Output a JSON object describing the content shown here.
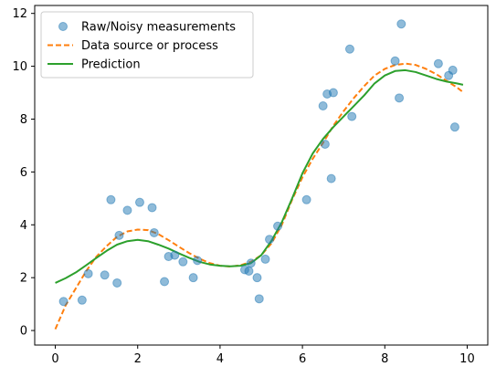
{
  "chart_data": {
    "type": "scatter",
    "title": "",
    "xlabel": "",
    "ylabel": "",
    "xlim": [
      -0.5,
      10.5
    ],
    "ylim": [
      -0.55,
      12.3
    ],
    "xticks": [
      0,
      2,
      4,
      6,
      8,
      10
    ],
    "yticks": [
      0,
      2,
      4,
      6,
      8,
      10,
      12
    ],
    "grid": false,
    "legend_position": "top-left",
    "legend": [
      "Raw/Noisy measurements",
      "Data source or process",
      "Prediction"
    ],
    "series": [
      {
        "name": "Raw/Noisy measurements",
        "kind": "scatter",
        "color": "#1f77b4",
        "points": [
          [
            0.2,
            1.1
          ],
          [
            0.65,
            1.15
          ],
          [
            0.8,
            2.15
          ],
          [
            1.2,
            2.1
          ],
          [
            1.35,
            4.95
          ],
          [
            1.5,
            1.8
          ],
          [
            1.55,
            3.6
          ],
          [
            1.75,
            4.55
          ],
          [
            2.05,
            4.85
          ],
          [
            2.35,
            4.65
          ],
          [
            2.4,
            3.7
          ],
          [
            2.65,
            1.85
          ],
          [
            2.75,
            2.8
          ],
          [
            2.9,
            2.85
          ],
          [
            3.1,
            2.6
          ],
          [
            3.35,
            2.0
          ],
          [
            3.45,
            2.65
          ],
          [
            4.6,
            2.3
          ],
          [
            4.7,
            2.25
          ],
          [
            4.75,
            2.55
          ],
          [
            4.9,
            2.0
          ],
          [
            4.95,
            1.2
          ],
          [
            5.1,
            2.7
          ],
          [
            5.2,
            3.45
          ],
          [
            5.4,
            3.95
          ],
          [
            6.1,
            4.95
          ],
          [
            6.5,
            8.5
          ],
          [
            6.55,
            7.05
          ],
          [
            6.6,
            8.95
          ],
          [
            6.7,
            5.75
          ],
          [
            6.75,
            9.0
          ],
          [
            7.15,
            10.65
          ],
          [
            7.2,
            8.1
          ],
          [
            8.25,
            10.2
          ],
          [
            8.35,
            8.8
          ],
          [
            8.4,
            11.6
          ],
          [
            9.3,
            10.1
          ],
          [
            9.55,
            9.65
          ],
          [
            9.65,
            9.85
          ],
          [
            9.7,
            7.7
          ]
        ]
      },
      {
        "name": "Data source or process",
        "kind": "line",
        "style": "dashed",
        "color": "#ff7f0e",
        "points": [
          [
            0.0,
            0.05
          ],
          [
            0.25,
            0.95
          ],
          [
            0.5,
            1.6
          ],
          [
            0.75,
            2.25
          ],
          [
            1.0,
            2.8
          ],
          [
            1.25,
            3.2
          ],
          [
            1.5,
            3.55
          ],
          [
            1.75,
            3.75
          ],
          [
            2.0,
            3.82
          ],
          [
            2.25,
            3.8
          ],
          [
            2.5,
            3.65
          ],
          [
            2.75,
            3.42
          ],
          [
            3.0,
            3.17
          ],
          [
            3.25,
            2.93
          ],
          [
            3.5,
            2.72
          ],
          [
            3.75,
            2.55
          ],
          [
            4.0,
            2.45
          ],
          [
            4.25,
            2.42
          ],
          [
            4.5,
            2.47
          ],
          [
            4.75,
            2.6
          ],
          [
            5.0,
            2.85
          ],
          [
            5.25,
            3.3
          ],
          [
            5.5,
            4.0
          ],
          [
            5.75,
            4.95
          ],
          [
            6.0,
            5.8
          ],
          [
            6.25,
            6.5
          ],
          [
            6.5,
            7.1
          ],
          [
            6.75,
            7.75
          ],
          [
            7.0,
            8.3
          ],
          [
            7.25,
            8.8
          ],
          [
            7.5,
            9.25
          ],
          [
            7.75,
            9.65
          ],
          [
            8.0,
            9.9
          ],
          [
            8.25,
            10.05
          ],
          [
            8.5,
            10.1
          ],
          [
            8.75,
            10.05
          ],
          [
            9.0,
            9.9
          ],
          [
            9.25,
            9.7
          ],
          [
            9.5,
            9.45
          ],
          [
            9.75,
            9.2
          ],
          [
            9.9,
            9.02
          ]
        ]
      },
      {
        "name": "Prediction",
        "kind": "line",
        "style": "solid",
        "color": "#2ca02c",
        "points": [
          [
            0.0,
            1.8
          ],
          [
            0.25,
            1.98
          ],
          [
            0.5,
            2.2
          ],
          [
            0.75,
            2.47
          ],
          [
            1.0,
            2.75
          ],
          [
            1.25,
            3.02
          ],
          [
            1.5,
            3.25
          ],
          [
            1.75,
            3.38
          ],
          [
            2.0,
            3.43
          ],
          [
            2.25,
            3.38
          ],
          [
            2.5,
            3.25
          ],
          [
            2.75,
            3.1
          ],
          [
            3.0,
            2.92
          ],
          [
            3.25,
            2.75
          ],
          [
            3.5,
            2.6
          ],
          [
            3.75,
            2.5
          ],
          [
            4.0,
            2.45
          ],
          [
            4.25,
            2.43
          ],
          [
            4.5,
            2.45
          ],
          [
            4.75,
            2.55
          ],
          [
            5.0,
            2.85
          ],
          [
            5.25,
            3.4
          ],
          [
            5.5,
            4.1
          ],
          [
            5.75,
            5.0
          ],
          [
            6.0,
            5.95
          ],
          [
            6.25,
            6.7
          ],
          [
            6.5,
            7.25
          ],
          [
            6.75,
            7.7
          ],
          [
            7.0,
            8.1
          ],
          [
            7.25,
            8.5
          ],
          [
            7.5,
            8.9
          ],
          [
            7.75,
            9.35
          ],
          [
            8.0,
            9.65
          ],
          [
            8.25,
            9.82
          ],
          [
            8.5,
            9.85
          ],
          [
            8.75,
            9.78
          ],
          [
            9.0,
            9.65
          ],
          [
            9.25,
            9.52
          ],
          [
            9.5,
            9.42
          ],
          [
            9.75,
            9.35
          ],
          [
            9.9,
            9.3
          ]
        ]
      }
    ]
  }
}
